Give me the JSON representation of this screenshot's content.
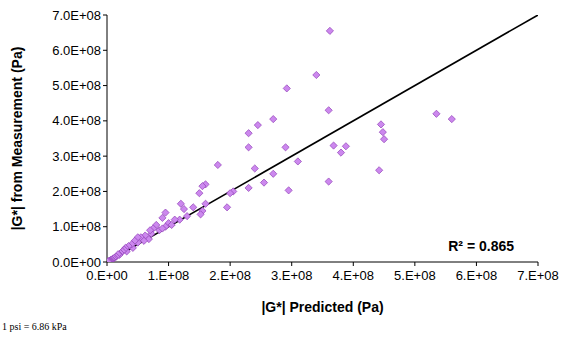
{
  "chart_data": {
    "type": "scatter",
    "x_label": "|G*| Predicted (Pa)",
    "y_label": "|G*| from Measurement (Pa)",
    "annotation": "R² = 0.865",
    "footnote": "1 psi = 6.86 kPa",
    "xlim": [
      0,
      700000000.0
    ],
    "ylim": [
      0,
      700000000.0
    ],
    "xticks": [
      {
        "value": 0,
        "label": "0.E+00"
      },
      {
        "value": 100000000.0,
        "label": "1.E+08"
      },
      {
        "value": 200000000.0,
        "label": "2.E+08"
      },
      {
        "value": 300000000.0,
        "label": "3.E+08"
      },
      {
        "value": 400000000.0,
        "label": "4.E+08"
      },
      {
        "value": 500000000.0,
        "label": "5.E+08"
      },
      {
        "value": 600000000.0,
        "label": "6.E+08"
      },
      {
        "value": 700000000.0,
        "label": "7.E+08"
      }
    ],
    "yticks": [
      {
        "value": 0,
        "label": "0.0E+00"
      },
      {
        "value": 100000000.0,
        "label": "1.0E+08"
      },
      {
        "value": 200000000.0,
        "label": "2.0E+08"
      },
      {
        "value": 300000000.0,
        "label": "3.0E+08"
      },
      {
        "value": 400000000.0,
        "label": "4.0E+08"
      },
      {
        "value": 500000000.0,
        "label": "5.0E+08"
      },
      {
        "value": 600000000.0,
        "label": "6.0E+08"
      },
      {
        "value": 700000000.0,
        "label": "7.0E+08"
      }
    ],
    "grid": false,
    "series": [
      {
        "type": "scatter",
        "marker": "diamond",
        "color": "#cc88ee",
        "x": [
          362000000.0,
          340000000.0,
          292000000.0,
          360000000.0,
          270000000.0,
          535000000.0,
          560000000.0,
          445000000.0,
          448000000.0,
          450000000.0,
          245000000.0,
          230000000.0,
          230000000.0,
          290000000.0,
          368000000.0,
          388000000.0,
          380000000.0,
          442000000.0,
          360000000.0,
          295000000.0,
          310000000.0,
          270000000.0,
          255000000.0,
          240000000.0,
          230000000.0,
          205000000.0,
          200000000.0,
          195000000.0,
          180000000.0,
          160000000.0,
          155000000.0,
          150000000.0,
          160000000.0,
          155000000.0,
          152000000.0,
          140000000.0,
          130000000.0,
          125000000.0,
          120000000.0,
          118000000.0,
          110000000.0,
          100000000.0,
          95000000.0,
          95000000.0,
          90000000.0,
          85000000.0,
          80000000.0,
          75000000.0,
          72000000.0,
          70000000.0,
          68000000.0,
          62000000.0,
          55000000.0,
          50000000.0,
          50000000.0,
          45000000.0,
          42000000.0,
          40000000.0,
          35000000.0,
          32000000.0,
          30000000.0,
          28000000.0,
          25000000.0,
          22000000.0,
          20000000.0,
          18000000.0,
          15000000.0,
          12000000.0,
          10000000.0,
          8000000.0,
          6000000.0,
          5000000.0,
          4000000.0,
          3000000.0,
          2000000.0,
          1000000.0,
          105000000.0,
          60000000.0,
          90000000.0
        ],
        "values": [
          655000000.0,
          530000000.0,
          492000000.0,
          430000000.0,
          405000000.0,
          420000000.0,
          405000000.0,
          390000000.0,
          368000000.0,
          348000000.0,
          388000000.0,
          365000000.0,
          325000000.0,
          325000000.0,
          330000000.0,
          328000000.0,
          310000000.0,
          260000000.0,
          228000000.0,
          203000000.0,
          285000000.0,
          250000000.0,
          225000000.0,
          265000000.0,
          210000000.0,
          200000000.0,
          195000000.0,
          155000000.0,
          275000000.0,
          220000000.0,
          215000000.0,
          195000000.0,
          165000000.0,
          145000000.0,
          135000000.0,
          155000000.0,
          130000000.0,
          150000000.0,
          165000000.0,
          120000000.0,
          120000000.0,
          110000000.0,
          140000000.0,
          100000000.0,
          125000000.0,
          90000000.0,
          105000000.0,
          95000000.0,
          80000000.0,
          90000000.0,
          65000000.0,
          75000000.0,
          70000000.0,
          55000000.0,
          70000000.0,
          60000000.0,
          40000000.0,
          50000000.0,
          45000000.0,
          30000000.0,
          40000000.0,
          35000000.0,
          30000000.0,
          25000000.0,
          20000000.0,
          22000000.0,
          15000000.0,
          12000000.0,
          10000000.0,
          7000000.0,
          6000000.0,
          4000000.0,
          3000000.0,
          2000000.0,
          2000000.0,
          1000000.0,
          105000000.0,
          60000000.0,
          95000000.0
        ]
      },
      {
        "type": "line",
        "line_style": "solid",
        "color": "#000000",
        "x": [
          0,
          700000000.0
        ],
        "values": [
          0,
          700000000.0
        ]
      }
    ]
  }
}
